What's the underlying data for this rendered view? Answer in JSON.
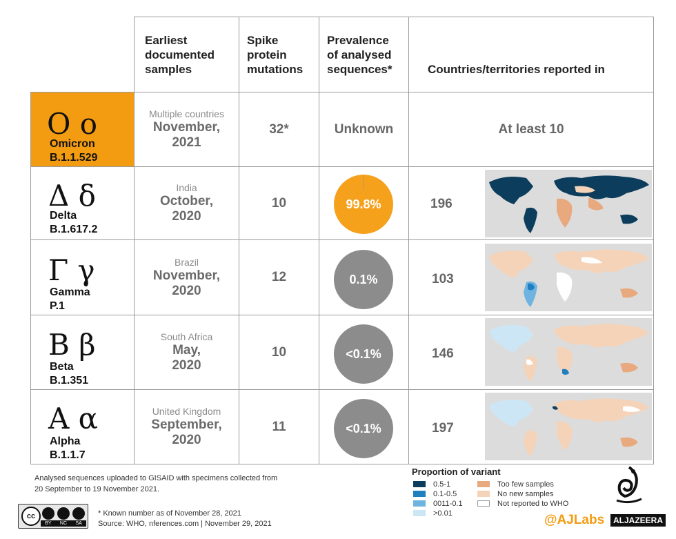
{
  "headers": {
    "earliest": [
      "Earliest",
      "documented",
      "samples"
    ],
    "spike": [
      "Spike",
      "protein",
      "mutations"
    ],
    "prevalence": [
      "Prevalence",
      "of analysed",
      "sequences*"
    ],
    "countries": "Countries/territories reported in"
  },
  "variants": [
    {
      "greek": "Ο ο",
      "name": "Omicron",
      "lineage": "B.1.1.529",
      "country": "Multiple countries",
      "date1": "November,",
      "date2": "2021",
      "mutations": "32*",
      "prevalence": "Unknown",
      "reported": "At least 10"
    },
    {
      "greek": "Δ δ",
      "name": "Delta",
      "lineage": "B.1.617.2",
      "country": "India",
      "date1": "October,",
      "date2": "2020",
      "mutations": "10",
      "prevalence": "99.8%",
      "reported": "196"
    },
    {
      "greek": "Γ γ",
      "name": "Gamma",
      "lineage": "P.1",
      "country": "Brazil",
      "date1": "November,",
      "date2": "2020",
      "mutations": "12",
      "prevalence": "0.1%",
      "reported": "103"
    },
    {
      "greek": "Β β",
      "name": "Beta",
      "lineage": "B.1.351",
      "country": "South Africa",
      "date1": "May,",
      "date2": "2020",
      "mutations": "10",
      "prevalence": "<0.1%",
      "reported": "146"
    },
    {
      "greek": "Α α",
      "name": "Alpha",
      "lineage": "B.1.1.7",
      "country": "United Kingdom",
      "date1": "September,",
      "date2": "2020",
      "mutations": "11",
      "prevalence": "<0.1%",
      "reported": "197"
    }
  ],
  "prevalence_values": {
    "delta": 99.8,
    "gamma": 0.1,
    "beta": 0.05,
    "alpha": 0.05
  },
  "colors": {
    "omicron": "#f39c12",
    "delta_pie": "#f5a11c",
    "pie_grey": "#8c8c8c",
    "dark_blue": "#0d3d5c",
    "mid_blue": "#1f7fbf",
    "light_blue": "#6fb3e0",
    "pale_blue": "#cde6f5",
    "peach_dark": "#e8a97f",
    "peach_light": "#f5d3b8"
  },
  "legend": {
    "title": "Proportion of variant",
    "items_left": [
      "0.5-1",
      "0.1-0.5",
      "0011-0.1",
      ">0.01"
    ],
    "items_right": [
      "Too few samples",
      "No new samples",
      "Not reported to WHO"
    ]
  },
  "footer": {
    "note1": "Analysed sequences uploaded to GISAID with specimens collected from",
    "note2": "20 September to 19 November 2021.",
    "known": "* Known number as of November 28, 2021",
    "source": "Source: WHO, nferences.com | November 29, 2021",
    "handle": "@AJLabs",
    "brand": "ALJAZEERA",
    "license": [
      "BY",
      "NC",
      "SA"
    ]
  }
}
